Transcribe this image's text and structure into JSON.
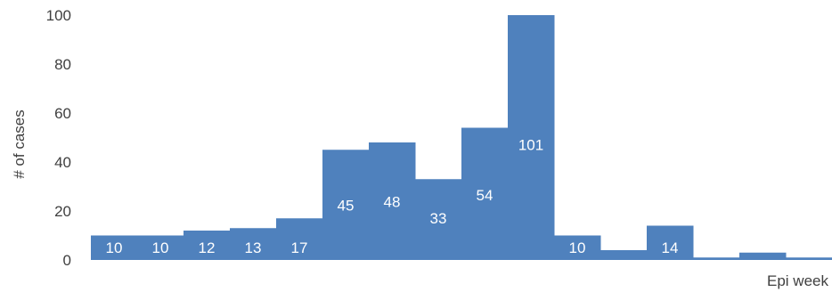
{
  "chart_data": {
    "type": "bar",
    "ylabel": "# of cases",
    "xlabel": "Epi week",
    "ylim": [
      0,
      100
    ],
    "yticks": [
      "0",
      "20",
      "40",
      "60",
      "80",
      "100"
    ],
    "values": [
      10,
      10,
      12,
      13,
      17,
      45,
      48,
      33,
      54,
      101,
      10,
      4,
      14,
      1,
      3,
      1
    ],
    "data_labels": [
      "10",
      "10",
      "12",
      "13",
      "17",
      "45",
      "48",
      "33",
      "54",
      "101",
      "10",
      "",
      "14",
      "",
      "",
      ""
    ],
    "bar_color": "#4f81bd",
    "grid": false
  }
}
